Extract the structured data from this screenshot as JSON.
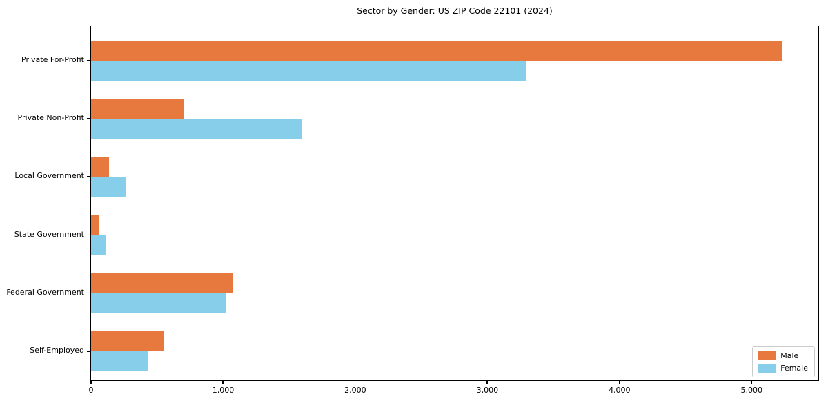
{
  "chart_data": {
    "type": "bar",
    "orientation": "horizontal",
    "title": "Sector by Gender: US ZIP Code 22101 (2024)",
    "xlabel": "",
    "ylabel": "",
    "categories": [
      "Private For-Profit",
      "Private Non-Profit",
      "Local Government",
      "State Government",
      "Federal Government",
      "Self-Employed"
    ],
    "series": [
      {
        "name": "Male",
        "color": "#e8793e",
        "values": [
          5230,
          700,
          135,
          57,
          1070,
          550
        ]
      },
      {
        "name": "Female",
        "color": "#87ceeb",
        "values": [
          3290,
          1600,
          260,
          113,
          1020,
          430
        ]
      }
    ],
    "xlim": [
      0,
      5500
    ],
    "x_ticks": [
      0,
      1000,
      2000,
      3000,
      4000,
      5000
    ],
    "x_tick_labels": [
      "0",
      "1,000",
      "2,000",
      "3,000",
      "4,000",
      "5,000"
    ],
    "grid": false,
    "legend": {
      "position": "lower right",
      "entries": [
        "Male",
        "Female"
      ]
    }
  },
  "colors": {
    "male": "#e8793e",
    "female": "#87ceeb",
    "spine": "#000000",
    "background": "#ffffff",
    "legend_border": "#cccccc"
  }
}
